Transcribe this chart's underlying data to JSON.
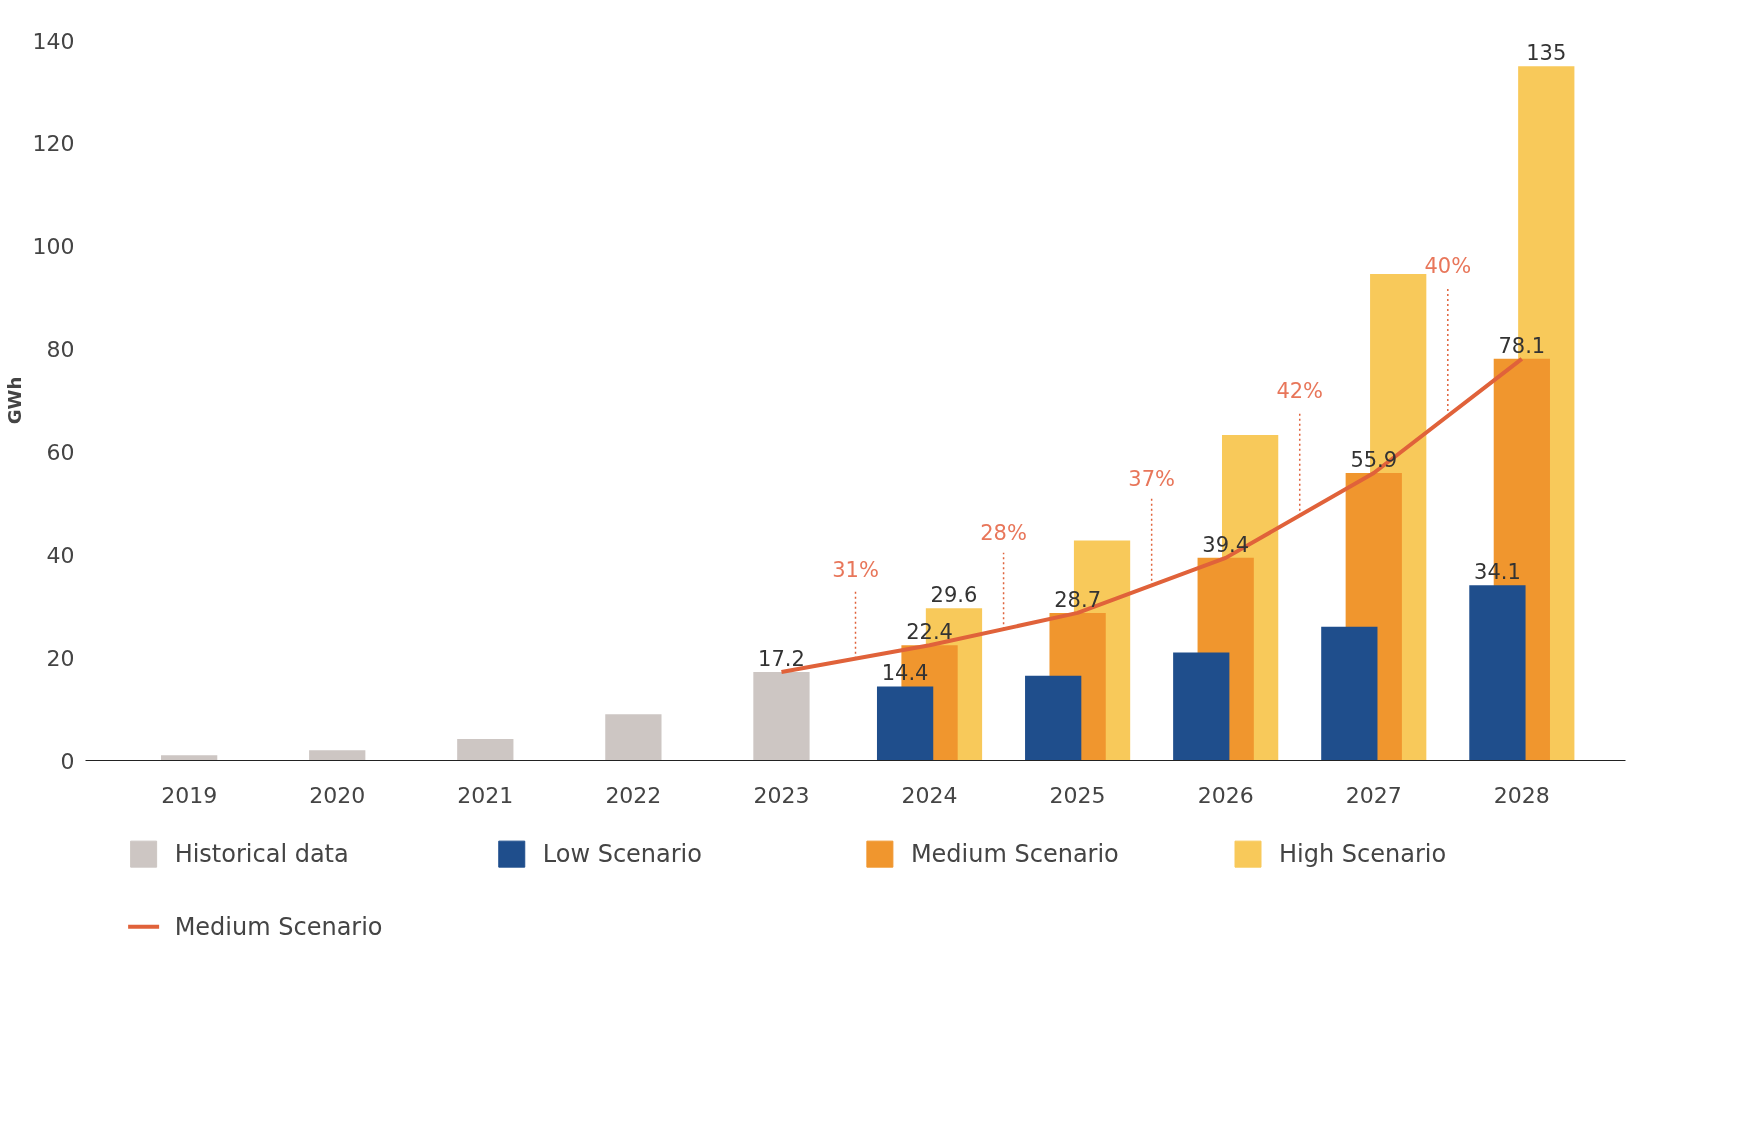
{
  "chart_data": {
    "type": "bar",
    "ylabel": "GWh",
    "categories": [
      "2019",
      "2020",
      "2021",
      "2022",
      "2023",
      "2024",
      "2025",
      "2026",
      "2027",
      "2028"
    ],
    "ylim": [
      0,
      140
    ],
    "yticks": [
      0,
      20,
      40,
      60,
      80,
      100,
      120,
      140
    ],
    "grid": false,
    "legend": "bottom",
    "series": [
      {
        "name": "Historical data",
        "color": "#cdc6c3",
        "values": [
          1,
          2,
          4.2,
          9,
          17.2,
          null,
          null,
          null,
          null,
          null
        ],
        "value_labels": [
          null,
          null,
          null,
          null,
          "17.2",
          null,
          null,
          null,
          null,
          null
        ]
      },
      {
        "name": "Low Scenario",
        "color": "#1f4e8c",
        "values": [
          null,
          null,
          null,
          null,
          null,
          14.4,
          16.5,
          21,
          26,
          34.1
        ],
        "value_labels": [
          null,
          null,
          null,
          null,
          null,
          "14.4",
          null,
          null,
          null,
          "34.1"
        ]
      },
      {
        "name": "Medium Scenario",
        "color": "#f0962e",
        "values": [
          null,
          null,
          null,
          null,
          null,
          22.4,
          28.7,
          39.4,
          55.9,
          78.1
        ],
        "value_labels": [
          null,
          null,
          null,
          null,
          null,
          "22.4",
          "28.7",
          "39.4",
          "55.9",
          "78.1"
        ]
      },
      {
        "name": "High Scenario",
        "color": "#f8c95a",
        "values": [
          null,
          null,
          null,
          null,
          null,
          29.6,
          42.8,
          63.3,
          94.6,
          135
        ],
        "value_labels": [
          null,
          null,
          null,
          null,
          null,
          "29.6",
          null,
          null,
          null,
          "135"
        ]
      },
      {
        "name": "Medium Scenario",
        "type": "line",
        "color": "#e0623a",
        "values": [
          null,
          null,
          null,
          null,
          17.2,
          22.4,
          28.7,
          39.4,
          55.9,
          78.1
        ]
      }
    ],
    "annotations": [
      {
        "text": "31%",
        "y": 19.8
      },
      {
        "text": "28%",
        "y": 25.5
      },
      {
        "text": "37%",
        "y": 34
      },
      {
        "text": "42%",
        "y": 47.6
      },
      {
        "text": "40%",
        "y": 67
      }
    ]
  }
}
